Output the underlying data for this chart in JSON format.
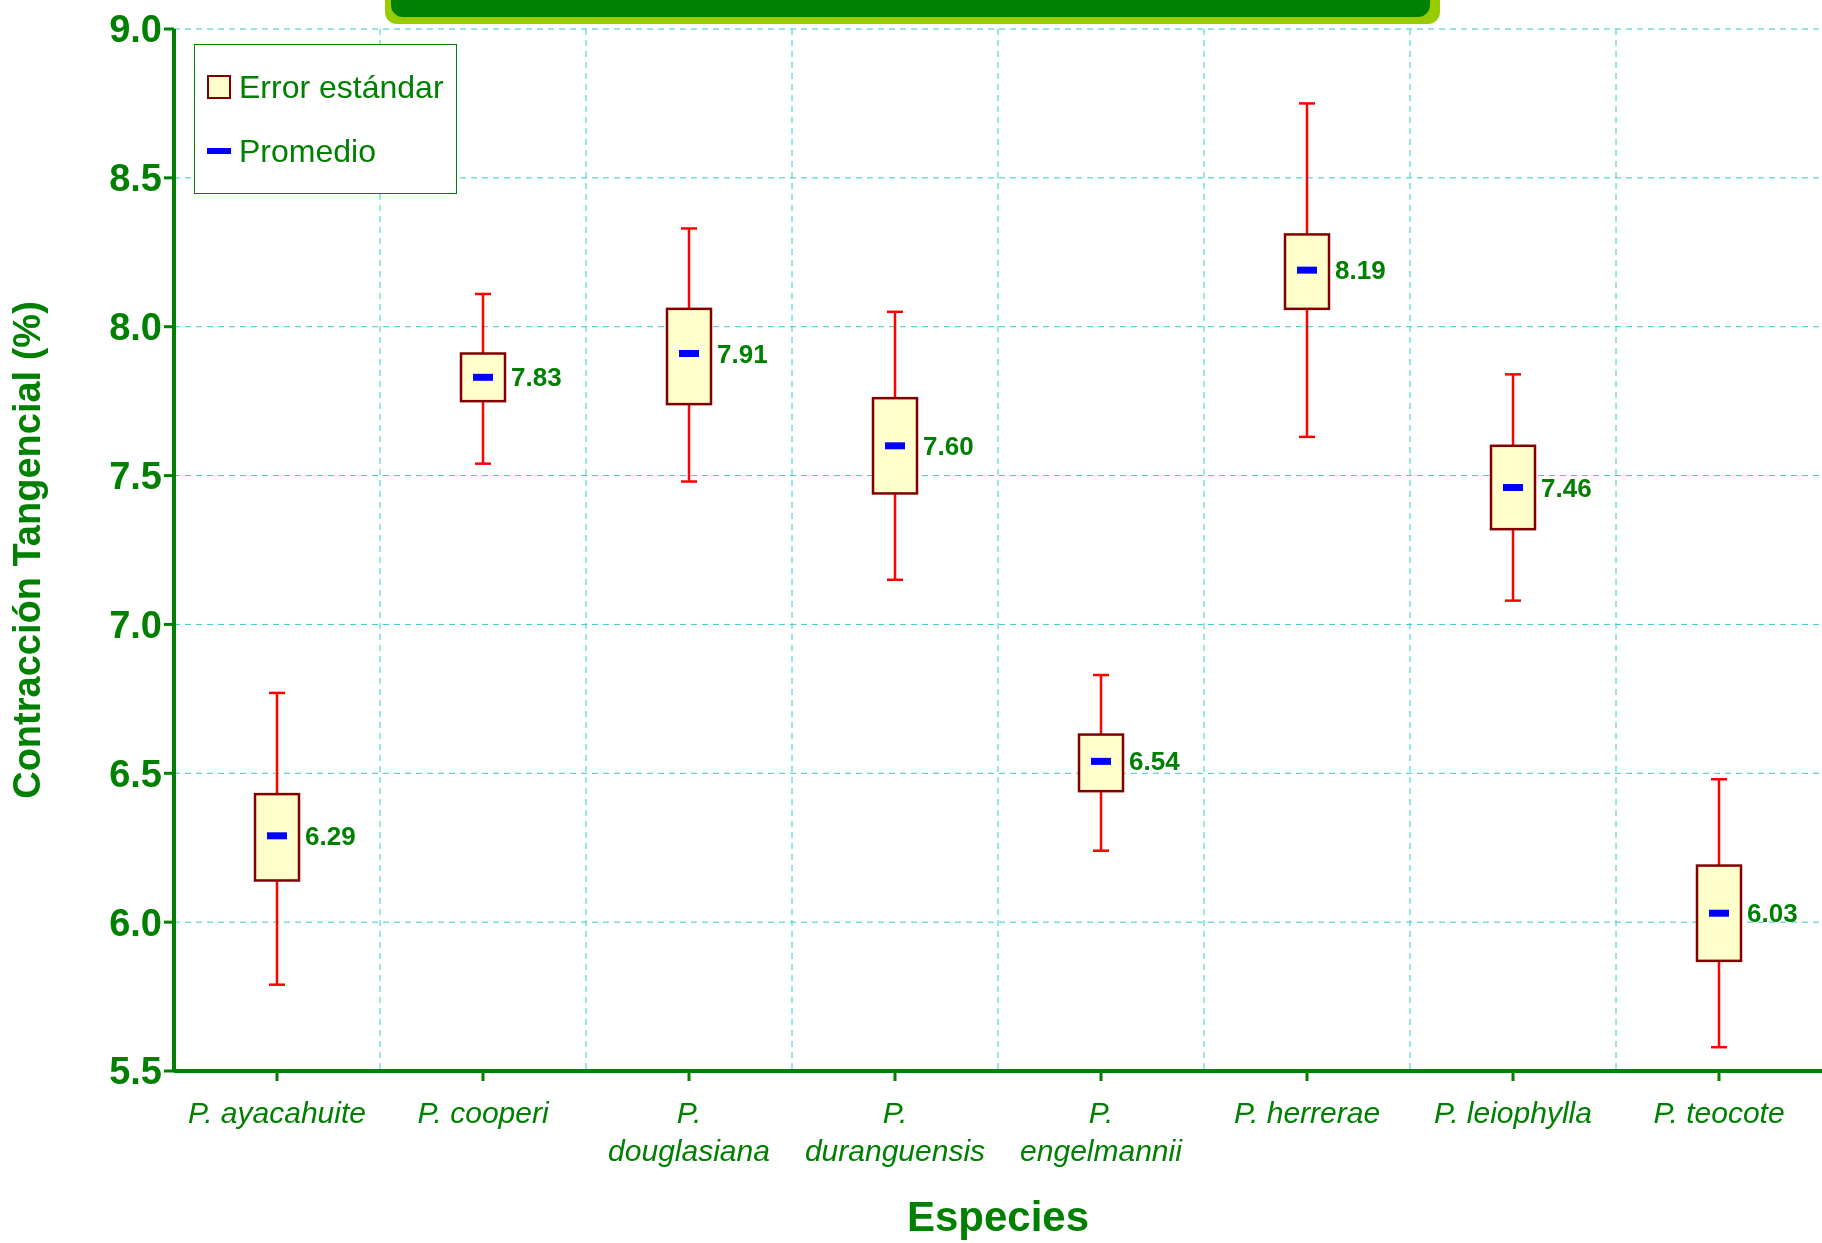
{
  "chart_data": {
    "type": "box",
    "xlabel": "Especies",
    "ylabel": "Contracción Tangencial (%)",
    "categories": [
      "P. ayacahuite",
      "P. cooperi",
      "P. douglasiana",
      "P. duranguensis",
      "P. engelmannii",
      "P. herrerae",
      "P. leiophylla",
      "P. teocote"
    ],
    "ylim": [
      5.5,
      9.0
    ],
    "yticks": [
      {
        "value": 5.5,
        "label": "5.5"
      },
      {
        "value": 6,
        "label": "6.0"
      },
      {
        "value": 6.5,
        "label": "6.5"
      },
      {
        "value": 7,
        "label": "7.0"
      },
      {
        "value": 7.5,
        "label": "7.5"
      },
      {
        "value": 8,
        "label": "8.0"
      },
      {
        "value": 8.5,
        "label": "8.5"
      },
      {
        "value": 9,
        "label": "9.0"
      }
    ],
    "grid": true,
    "legend": "top left",
    "series": [
      {
        "name": "Error estándar",
        "type": "box",
        "color": "#ffffcc",
        "boxes": [
          {
            "low": 5.79,
            "q1": 6.14,
            "q3": 6.43,
            "high": 6.77
          },
          {
            "low": 7.54,
            "q1": 7.75,
            "q3": 7.91,
            "high": 8.11
          },
          {
            "low": 7.48,
            "q1": 7.74,
            "q3": 8.06,
            "high": 8.33
          },
          {
            "low": 7.15,
            "q1": 7.44,
            "q3": 7.76,
            "high": 8.05
          },
          {
            "low": 6.24,
            "q1": 6.44,
            "q3": 6.63,
            "high": 6.83
          },
          {
            "low": 7.63,
            "q1": 8.06,
            "q3": 8.31,
            "high": 8.75
          },
          {
            "low": 7.08,
            "q1": 7.32,
            "q3": 7.6,
            "high": 7.84
          },
          {
            "low": 5.58,
            "q1": 5.87,
            "q3": 6.19,
            "high": 6.48
          }
        ]
      },
      {
        "name": "Promedio",
        "type": "scatter",
        "color": "#0000ff",
        "x": [
          "P. ayacahuite",
          "P. cooperi",
          "P. douglasiana",
          "P. duranguensis",
          "P. engelmannii",
          "P. herrerae",
          "P. leiophylla",
          "P. teocote"
        ],
        "values": [
          6.29,
          7.83,
          7.91,
          7.6,
          6.54,
          8.19,
          7.46,
          6.03
        ],
        "value_labels": [
          "6.29",
          "7.83",
          "7.91",
          "7.60",
          "6.54",
          "8.19",
          "7.46",
          "6.03"
        ]
      }
    ]
  }
}
